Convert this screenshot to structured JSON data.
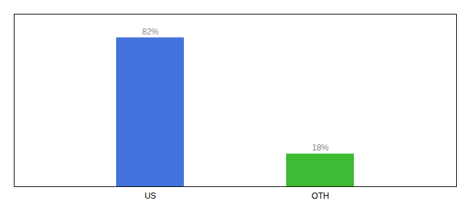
{
  "chart_data": {
    "type": "bar",
    "categories": [
      "US",
      "OTH"
    ],
    "values": [
      82,
      18
    ],
    "value_labels": [
      "82%",
      "18%"
    ],
    "colors": [
      "#4472DD",
      "#3DBB35"
    ],
    "ylim": [
      0,
      95
    ],
    "data_labels": true,
    "tick_labels": "x"
  }
}
